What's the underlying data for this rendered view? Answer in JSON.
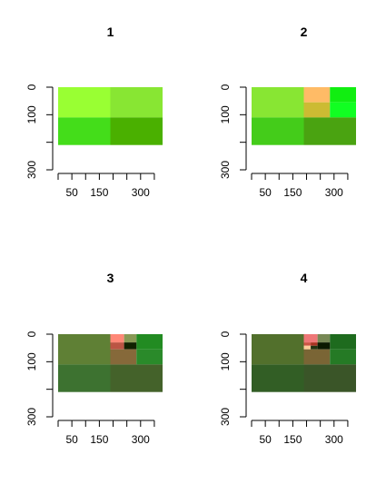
{
  "chart_data": [
    {
      "type": "heatmap",
      "title": "1",
      "xlim": [
        0,
        380
      ],
      "ylim": [
        300,
        0
      ],
      "xticks": [
        0,
        50,
        100,
        150,
        200,
        250,
        300,
        350
      ],
      "xtick_labels": [
        "",
        "50",
        "",
        "150",
        "",
        "",
        "300",
        ""
      ],
      "yticks": [
        0,
        100,
        200,
        300
      ],
      "ytick_labels": [
        "0",
        "100",
        "",
        "300"
      ],
      "cells": [
        {
          "x0": 0,
          "x1": 190,
          "y0": 0,
          "y1": 110,
          "color": "#99ff33"
        },
        {
          "x0": 190,
          "x1": 380,
          "y0": 0,
          "y1": 110,
          "color": "#88e633"
        },
        {
          "x0": 0,
          "x1": 190,
          "y0": 110,
          "y1": 210,
          "color": "#44dd1a"
        },
        {
          "x0": 190,
          "x1": 380,
          "y0": 110,
          "y1": 210,
          "color": "#4ab000"
        }
      ]
    },
    {
      "type": "heatmap",
      "title": "2",
      "xlim": [
        0,
        380
      ],
      "ylim": [
        300,
        0
      ],
      "xticks": [
        0,
        50,
        100,
        150,
        200,
        250,
        300,
        350
      ],
      "xtick_labels": [
        "",
        "50",
        "",
        "150",
        "",
        "",
        "300",
        ""
      ],
      "yticks": [
        0,
        100,
        200,
        300
      ],
      "ytick_labels": [
        "0",
        "100",
        "",
        "300"
      ],
      "cells": [
        {
          "x0": 0,
          "x1": 190,
          "y0": 0,
          "y1": 110,
          "color": "#88e633"
        },
        {
          "x0": 190,
          "x1": 285,
          "y0": 0,
          "y1": 55,
          "color": "#ffbb66"
        },
        {
          "x0": 285,
          "x1": 380,
          "y0": 0,
          "y1": 55,
          "color": "#11ee11"
        },
        {
          "x0": 190,
          "x1": 285,
          "y0": 55,
          "y1": 110,
          "color": "#ccbb33"
        },
        {
          "x0": 285,
          "x1": 380,
          "y0": 55,
          "y1": 110,
          "color": "#11ff22"
        },
        {
          "x0": 0,
          "x1": 190,
          "y0": 110,
          "y1": 210,
          "color": "#44cc1a"
        },
        {
          "x0": 190,
          "x1": 380,
          "y0": 110,
          "y1": 210,
          "color": "#4aa311"
        }
      ]
    },
    {
      "type": "heatmap",
      "title": "3",
      "xlim": [
        0,
        380
      ],
      "ylim": [
        300,
        0
      ],
      "xticks": [
        0,
        50,
        100,
        150,
        200,
        250,
        300,
        350
      ],
      "xtick_labels": [
        "",
        "50",
        "",
        "150",
        "",
        "",
        "300",
        ""
      ],
      "yticks": [
        0,
        100,
        200,
        300
      ],
      "ytick_labels": [
        "0",
        "100",
        "",
        "300"
      ],
      "cells": [
        {
          "x0": 0,
          "x1": 190,
          "y0": 0,
          "y1": 110,
          "color": "#5f8035"
        },
        {
          "x0": 190,
          "x1": 240,
          "y0": 0,
          "y1": 30,
          "color": "#ff8877"
        },
        {
          "x0": 240,
          "x1": 285,
          "y0": 0,
          "y1": 30,
          "color": "#889955"
        },
        {
          "x0": 285,
          "x1": 380,
          "y0": 0,
          "y1": 55,
          "color": "#228b22"
        },
        {
          "x0": 190,
          "x1": 240,
          "y0": 30,
          "y1": 55,
          "color": "#bb5544"
        },
        {
          "x0": 240,
          "x1": 285,
          "y0": 30,
          "y1": 55,
          "color": "#112200"
        },
        {
          "x0": 190,
          "x1": 285,
          "y0": 55,
          "y1": 110,
          "color": "#86693a"
        },
        {
          "x0": 285,
          "x1": 380,
          "y0": 55,
          "y1": 110,
          "color": "#2a8a2a"
        },
        {
          "x0": 0,
          "x1": 190,
          "y0": 110,
          "y1": 210,
          "color": "#3d7230"
        },
        {
          "x0": 190,
          "x1": 380,
          "y0": 110,
          "y1": 210,
          "color": "#44622a"
        }
      ]
    },
    {
      "type": "heatmap",
      "title": "4",
      "xlim": [
        0,
        380
      ],
      "ylim": [
        300,
        0
      ],
      "xticks": [
        0,
        50,
        100,
        150,
        200,
        250,
        300,
        350
      ],
      "xtick_labels": [
        "",
        "50",
        "",
        "150",
        "",
        "",
        "300",
        ""
      ],
      "yticks": [
        0,
        100,
        200,
        300
      ],
      "ytick_labels": [
        "0",
        "100",
        "",
        "300"
      ],
      "cells": [
        {
          "x0": 0,
          "x1": 190,
          "y0": 0,
          "y1": 110,
          "color": "#52702c"
        },
        {
          "x0": 190,
          "x1": 240,
          "y0": 0,
          "y1": 30,
          "color": "#ee7777"
        },
        {
          "x0": 240,
          "x1": 285,
          "y0": 0,
          "y1": 30,
          "color": "#778855"
        },
        {
          "x0": 285,
          "x1": 380,
          "y0": 0,
          "y1": 55,
          "color": "#1e6b1e"
        },
        {
          "x0": 190,
          "x1": 215,
          "y0": 30,
          "y1": 42,
          "color": "#cc5544"
        },
        {
          "x0": 215,
          "x1": 240,
          "y0": 30,
          "y1": 42,
          "color": "#aa3322"
        },
        {
          "x0": 190,
          "x1": 215,
          "y0": 42,
          "y1": 55,
          "color": "#ffcc99"
        },
        {
          "x0": 215,
          "x1": 240,
          "y0": 42,
          "y1": 55,
          "color": "#223311"
        },
        {
          "x0": 240,
          "x1": 285,
          "y0": 30,
          "y1": 55,
          "color": "#0c1a00"
        },
        {
          "x0": 190,
          "x1": 285,
          "y0": 55,
          "y1": 110,
          "color": "#7a6535"
        },
        {
          "x0": 285,
          "x1": 380,
          "y0": 55,
          "y1": 110,
          "color": "#257a25"
        },
        {
          "x0": 0,
          "x1": 190,
          "y0": 110,
          "y1": 210,
          "color": "#325e25"
        },
        {
          "x0": 190,
          "x1": 380,
          "y0": 110,
          "y1": 210,
          "color": "#3a5528"
        }
      ]
    }
  ]
}
